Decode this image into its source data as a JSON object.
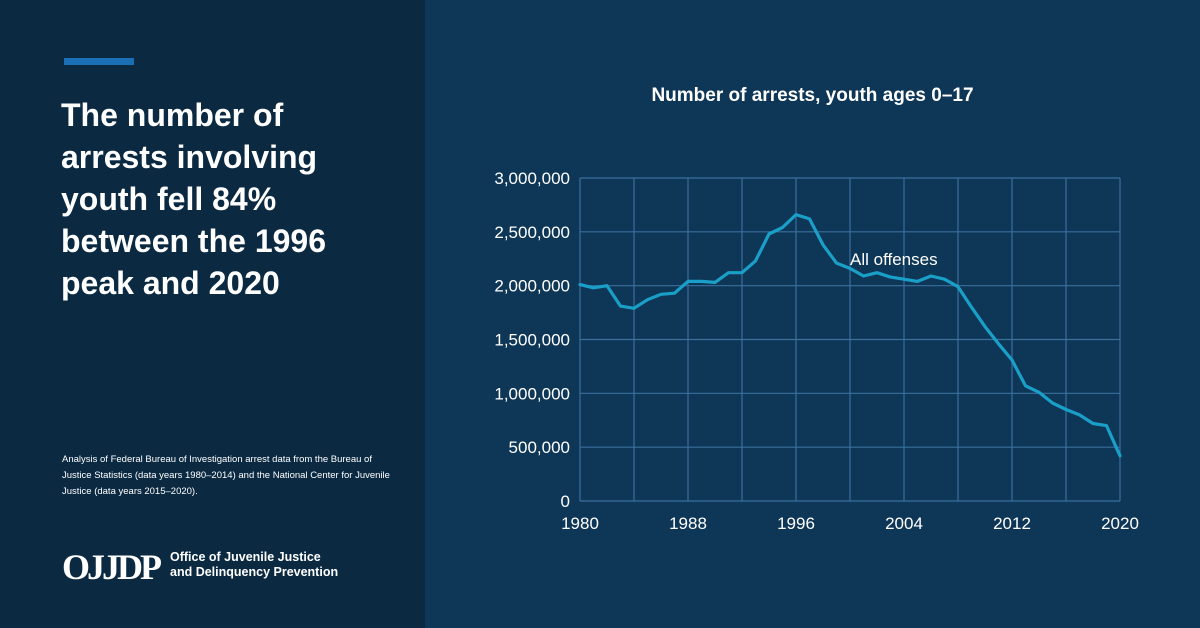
{
  "left_panel": {
    "headline": "The number of arrests involving youth fell 84% between the 1996 peak and 2020",
    "source_note": "Analysis of Federal Bureau of Investigation arrest data from the Bureau of Justice Statistics (data years 1980–2014) and the National Center for Juvenile Justice (data years 2015–2020).",
    "logo": {
      "mark": "OJJDP",
      "line1": "Office of Juvenile Justice",
      "line2": "and Delinquency Prevention"
    }
  },
  "colors": {
    "left_background": "#0b2a42",
    "chart_background": "#0e3656",
    "accent": "#1b6fb5",
    "grid": "#3a6f9e",
    "series": "#1aa0c8"
  },
  "chart_data": {
    "type": "line",
    "title": "Number of arrests, youth ages 0–17",
    "xlabel": "",
    "ylabel": "",
    "xlim": [
      1980,
      2020
    ],
    "ylim": [
      0,
      3000000
    ],
    "x_ticks": [
      1980,
      1988,
      1996,
      2004,
      2012,
      2020
    ],
    "x_tick_labels": [
      "1980",
      "1988",
      "1996",
      "2004",
      "2012",
      "2020"
    ],
    "y_ticks": [
      0,
      500000,
      1000000,
      1500000,
      2000000,
      2500000,
      3000000
    ],
    "y_tick_labels": [
      "0",
      "500,000",
      "1,000,000",
      "1,500,000",
      "2,000,000",
      "2,500,000",
      "3,000,000"
    ],
    "grid": true,
    "legend": "none",
    "series": [
      {
        "label": "All offenses",
        "x": [
          1980,
          1981,
          1982,
          1983,
          1984,
          1985,
          1986,
          1987,
          1988,
          1989,
          1990,
          1991,
          1992,
          1993,
          1994,
          1995,
          1996,
          1997,
          1998,
          1999,
          2000,
          2001,
          2002,
          2003,
          2004,
          2005,
          2006,
          2007,
          2008,
          2009,
          2010,
          2011,
          2012,
          2013,
          2014,
          2015,
          2016,
          2017,
          2018,
          2019,
          2020
        ],
        "values": [
          2010000,
          1980000,
          2000000,
          1810000,
          1790000,
          1870000,
          1920000,
          1930000,
          2040000,
          2040000,
          2030000,
          2120000,
          2120000,
          2230000,
          2480000,
          2540000,
          2660000,
          2620000,
          2380000,
          2210000,
          2160000,
          2090000,
          2120000,
          2080000,
          2060000,
          2040000,
          2090000,
          2060000,
          1990000,
          1800000,
          1620000,
          1460000,
          1310000,
          1070000,
          1010000,
          910000,
          850000,
          800000,
          720000,
          700000,
          420000
        ]
      }
    ]
  }
}
